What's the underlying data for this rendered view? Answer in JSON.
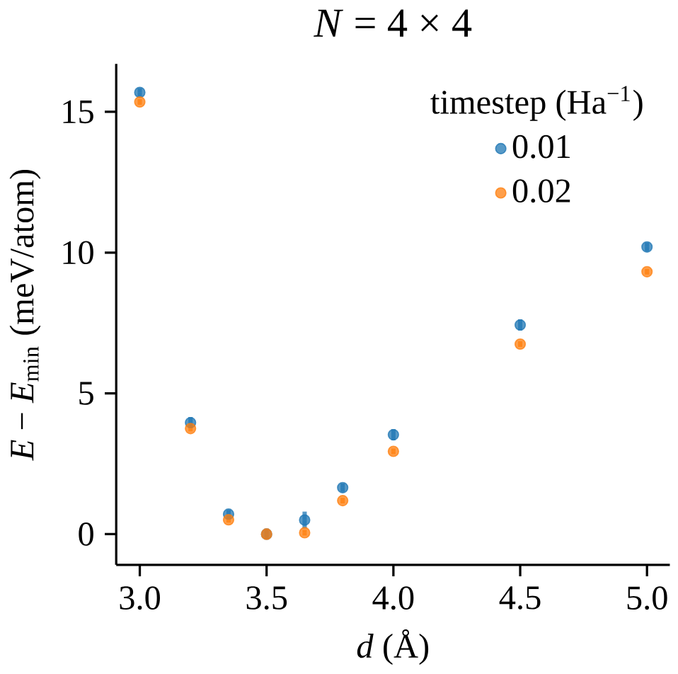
{
  "chart_data": {
    "type": "scatter",
    "title": "*N* = 4 × 4",
    "xlabel": "*d* (Å)",
    "ylabel": "*E* − *E*$_{min}$ (meV/atom)",
    "legend_title": "timestep (Ha$^{−1}$)",
    "legend": "top right",
    "grid": false,
    "x": [
      3.0,
      3.2,
      3.35,
      3.5,
      3.65,
      3.8,
      4.0,
      4.5,
      5.0
    ],
    "series": [
      {
        "name": "0.01",
        "color": "#1f77b4",
        "values": [
          15.69,
          3.96,
          0.71,
          0.0,
          0.5,
          1.65,
          3.53,
          7.43,
          10.2
        ],
        "errors": [
          0.15,
          0.2,
          0.15,
          null,
          0.3,
          0.15,
          0.2,
          0.2,
          0.15
        ]
      },
      {
        "name": "0.02",
        "color": "#ff7f0e",
        "values": [
          15.35,
          3.75,
          0.51,
          0.0,
          0.05,
          1.19,
          2.94,
          6.75,
          9.32
        ],
        "errors": [
          0.1,
          0.1,
          0.1,
          0.2,
          0.1,
          0.1,
          0.1,
          0.1,
          0.1
        ]
      }
    ],
    "xlim": [
      2.907,
      5.09
    ],
    "ylim": [
      -1.09,
      16.7
    ],
    "xticks": [
      {
        "value": 3.0,
        "label": "3.0"
      },
      {
        "value": 3.5,
        "label": "3.5"
      },
      {
        "value": 4.0,
        "label": "4.0"
      },
      {
        "value": 4.5,
        "label": "4.5"
      },
      {
        "value": 5.0,
        "label": "5.0"
      }
    ],
    "yticks": [
      0,
      5,
      10,
      15
    ]
  }
}
